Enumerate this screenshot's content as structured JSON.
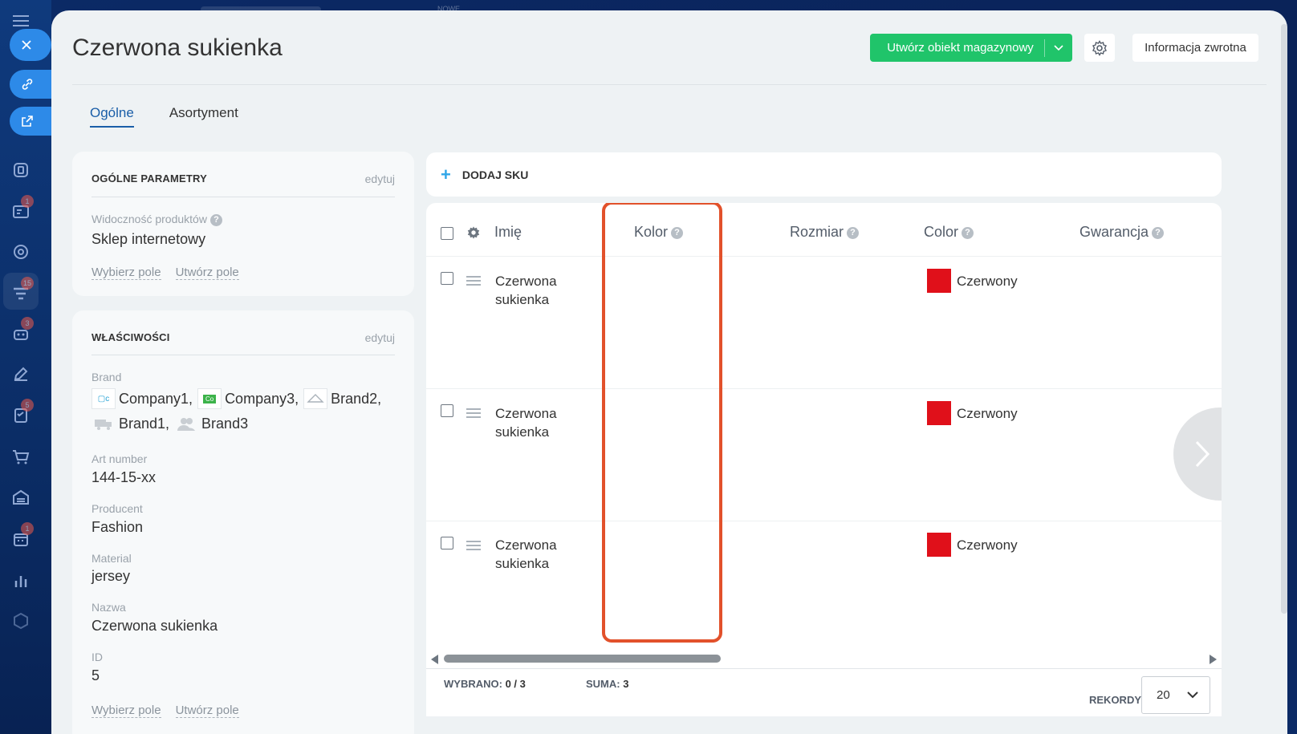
{
  "background": {
    "top_label": "NOWE"
  },
  "sidebar": {
    "badges": [
      "1",
      "15",
      "3",
      "5",
      "1"
    ]
  },
  "header": {
    "title": "Czerwona sukienka",
    "create_button": "Utwórz obiekt magazynowy",
    "feedback_button": "Informacja zwrotna"
  },
  "tabs": [
    {
      "label": "Ogólne",
      "active": true
    },
    {
      "label": "Asortyment",
      "active": false
    }
  ],
  "general_card": {
    "title": "OGÓLNE PARAMETRY",
    "edit": "edytuj",
    "visibility_label": "Widoczność produktów",
    "visibility_value": "Sklep internetowy",
    "select_field": "Wybierz pole",
    "create_field": "Utwórz pole"
  },
  "properties_card": {
    "title": "WŁAŚCIWOŚCI",
    "edit": "edytuj",
    "brand_label": "Brand",
    "brands": [
      "Company1,",
      "Company3,",
      "Brand2,",
      "Brand1,",
      "Brand3"
    ],
    "art_label": "Art number",
    "art_value": "144-15-xx",
    "producer_label": "Producent",
    "producer_value": "Fashion",
    "material_label": "Material",
    "material_value": "jersey",
    "name_label": "Nazwa",
    "name_value": "Czerwona sukienka",
    "id_label": "ID",
    "id_value": "5",
    "select_field": "Wybierz pole",
    "create_field": "Utwórz pole"
  },
  "sku": {
    "add_label": "DODAJ SKU",
    "columns": [
      "Imię",
      "Kolor",
      "Rozmiar",
      "Color",
      "Gwarancja"
    ],
    "rows": [
      {
        "name_line1": "Czerwona",
        "name_line2": "sukienka",
        "color": "Czerwony"
      },
      {
        "name_line1": "Czerwona",
        "name_line2": "sukienka",
        "color": "Czerwony"
      },
      {
        "name_line1": "Czerwona",
        "name_line2": "sukienka",
        "color": "Czerwony"
      }
    ],
    "swatch_color": "#e0101a",
    "highlight_color": "#e2512b",
    "footer": {
      "selected_label": "WYBRANO:",
      "selected_value": "0 / 3",
      "total_label": "SUMA:",
      "total_value": "3",
      "records_label": "REKORDY:",
      "records_value": "20"
    }
  },
  "colors": {
    "accent_green": "#20c46a",
    "link_blue": "#1a5ea8"
  }
}
